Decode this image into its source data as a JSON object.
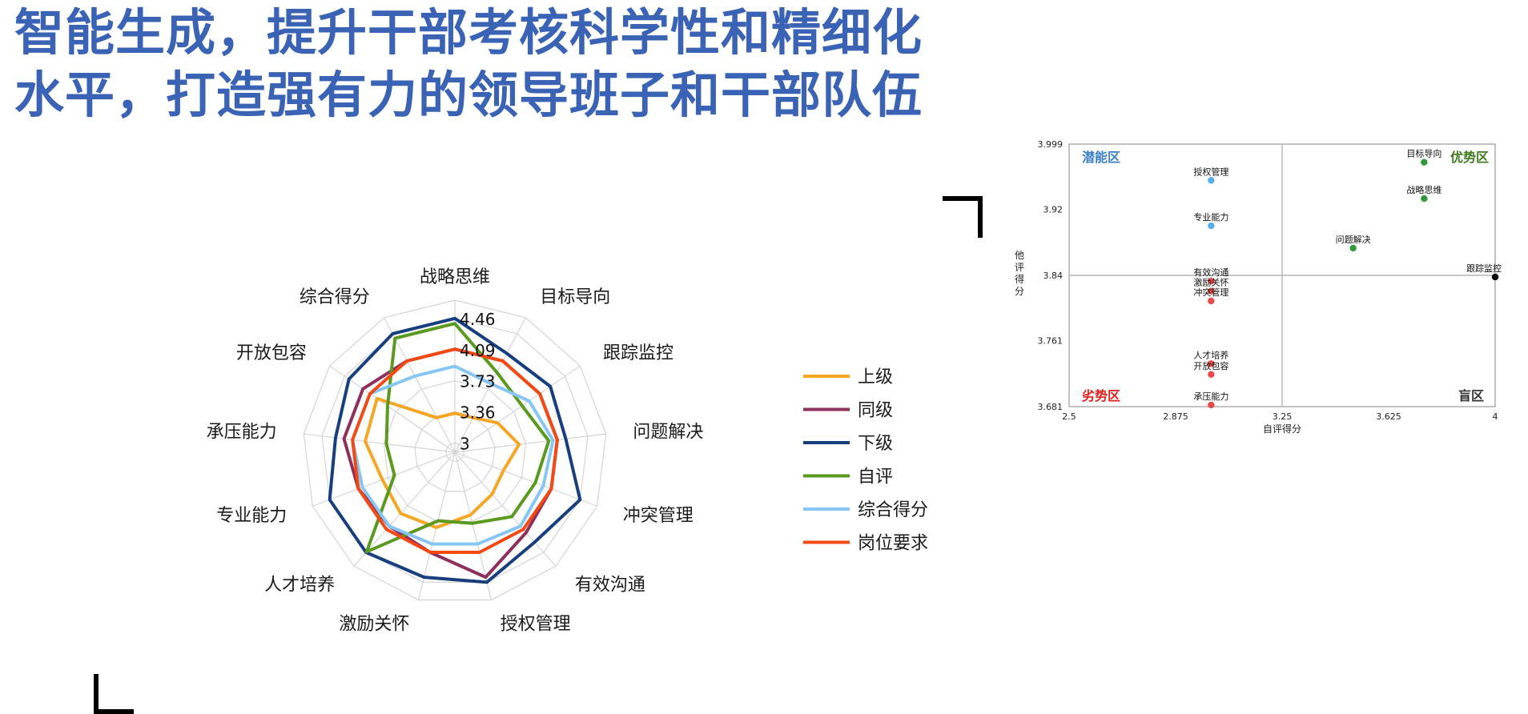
{
  "title": {
    "line1": "智能生成，提升干部考核科学性和精细化",
    "line2": "水平，打造强有力的领导班子和干部队伍"
  },
  "chart_data": [
    {
      "type": "radar",
      "categories": [
        "战略思维",
        "目标导向",
        "跟踪监控",
        "问题解决",
        "冲突管理",
        "有效沟通",
        "授权管理",
        "激励关怀",
        "人才培养",
        "专业能力",
        "承压能力",
        "开放包容",
        "综合得分"
      ],
      "rlim": [
        3,
        4.46
      ],
      "ticks": [
        "3",
        "3.36",
        "3.73",
        "4.09",
        "4.46"
      ],
      "tick_values": [
        3,
        3.365,
        3.73,
        4.095,
        4.46
      ],
      "series": [
        {
          "name": "上级",
          "color": "#f5a623",
          "values": [
            3.35,
            3.35,
            3.5,
            3.65,
            3.5,
            3.55,
            3.65,
            3.8,
            3.85,
            3.8,
            3.95,
            4.0,
            3.35
          ]
        },
        {
          "name": "同级",
          "color": "#8e2f5c",
          "values": [
            4.1,
            4.1,
            4.1,
            4.1,
            4.1,
            4.15,
            4.4,
            4.1,
            4.05,
            4.1,
            4.2,
            4.2,
            4.1
          ]
        },
        {
          "name": "下级",
          "color": "#173e7e",
          "values": [
            4.46,
            4.2,
            4.25,
            4.2,
            4.46,
            4.3,
            4.46,
            4.4,
            4.46,
            4.46,
            4.3,
            4.4,
            4.46
          ]
        },
        {
          "name": "自评",
          "color": "#5a9a1e",
          "values": [
            4.4,
            3.95,
            3.85,
            4.0,
            3.9,
            3.9,
            3.75,
            3.72,
            4.45,
            3.65,
            3.7,
            3.85,
            4.4
          ]
        },
        {
          "name": "综合得分",
          "color": "#86c6f4",
          "values": [
            3.9,
            3.8,
            3.95,
            4.05,
            4.0,
            4.05,
            4.0,
            4.0,
            4.05,
            4.05,
            4.1,
            4.1,
            3.9
          ]
        },
        {
          "name": "岗位要求",
          "color": "#f34a14",
          "values": [
            4.1,
            4.1,
            4.1,
            4.1,
            4.1,
            4.1,
            4.1,
            4.1,
            4.1,
            4.1,
            4.1,
            4.1,
            4.1
          ]
        }
      ]
    },
    {
      "type": "scatter",
      "xlabel": "自评得分",
      "ylabel": "他评得分",
      "xlim": [
        2.5,
        4
      ],
      "ylim": [
        3.681,
        3.999
      ],
      "xticks": [
        "2.5",
        "2.875",
        "3.25",
        "3.625",
        "4"
      ],
      "xtick_values": [
        2.5,
        2.875,
        3.25,
        3.625,
        4
      ],
      "yticks": [
        "3.999",
        "3.92",
        "3.84",
        "3.761",
        "3.681"
      ],
      "ytick_values": [
        3.999,
        3.92,
        3.84,
        3.761,
        3.681
      ],
      "divider": {
        "x": 3.25,
        "y": 3.84
      },
      "quadrants": [
        {
          "label": "潜能区",
          "color": "#3a7fc6",
          "position": "top-left"
        },
        {
          "label": "优势区",
          "color": "#3f7a1e",
          "position": "top-right"
        },
        {
          "label": "劣势区",
          "color": "#e0201c",
          "position": "bottom-left"
        },
        {
          "label": "盲区",
          "color": "#333333",
          "position": "bottom-right"
        }
      ],
      "points": [
        {
          "label": "授权管理",
          "x": 3.0,
          "y": 3.955,
          "color": "#5aaee8"
        },
        {
          "label": "专业能力",
          "x": 3.0,
          "y": 3.9,
          "color": "#5aaee8"
        },
        {
          "label": "目标导向",
          "x": 3.75,
          "y": 3.977,
          "color": "#2e9a3a"
        },
        {
          "label": "战略思维",
          "x": 3.75,
          "y": 3.933,
          "color": "#2e9a3a"
        },
        {
          "label": "问题解决",
          "x": 3.5,
          "y": 3.873,
          "color": "#2e9a3a"
        },
        {
          "label": "跟踪监控",
          "x": 4.0,
          "y": 3.838,
          "color": "#000000"
        },
        {
          "label": "有效沟通",
          "x": 3.0,
          "y": 3.833,
          "color": "#e84a4a"
        },
        {
          "label": "激励关怀",
          "x": 3.0,
          "y": 3.821,
          "color": "#e84a4a"
        },
        {
          "label": "冲突管理",
          "x": 3.0,
          "y": 3.809,
          "color": "#e84a4a"
        },
        {
          "label": "人才培养",
          "x": 3.0,
          "y": 3.733,
          "color": "#e84a4a"
        },
        {
          "label": "开放包容",
          "x": 3.0,
          "y": 3.72,
          "color": "#e84a4a"
        },
        {
          "label": "承压能力",
          "x": 3.0,
          "y": 3.683,
          "color": "#e84a4a"
        }
      ]
    }
  ]
}
